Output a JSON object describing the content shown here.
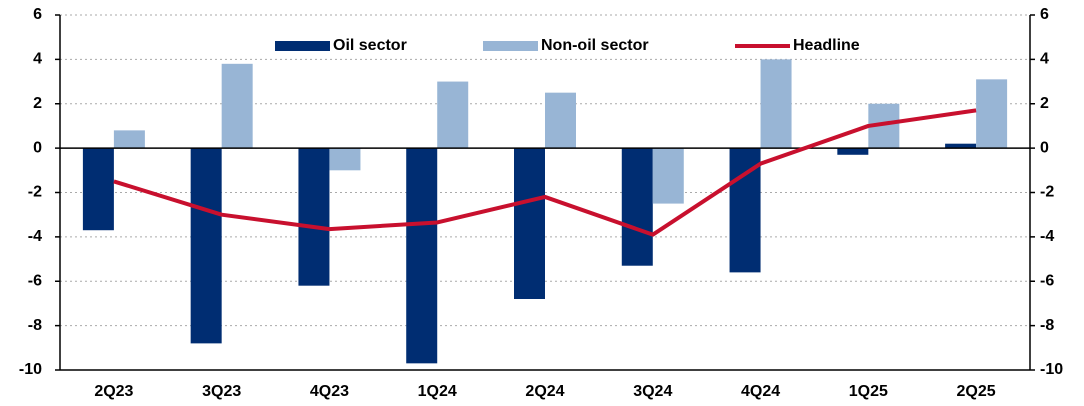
{
  "chart_data": {
    "type": "bar_line",
    "categories": [
      "2Q23",
      "3Q23",
      "4Q23",
      "1Q24",
      "2Q24",
      "3Q24",
      "4Q24",
      "1Q25",
      "2Q25"
    ],
    "series": [
      {
        "name": "Oil sector",
        "color": "#002d72",
        "type": "bar",
        "values": [
          -3.7,
          -8.8,
          -6.2,
          -9.7,
          -6.8,
          -5.3,
          -5.6,
          -0.3,
          0.2
        ]
      },
      {
        "name": "Non-oil sector",
        "color": "#98b5d5",
        "type": "bar",
        "values": [
          0.8,
          3.8,
          -1.0,
          3.0,
          2.5,
          -2.5,
          4.0,
          2.0,
          3.1
        ]
      },
      {
        "name": "Headline",
        "color": "#c8102e",
        "type": "line",
        "values": [
          -1.5,
          -3.0,
          -3.65,
          -3.35,
          -2.2,
          -3.9,
          -0.7,
          1.0,
          1.7
        ]
      }
    ],
    "ylim": [
      -10,
      6
    ],
    "yticks": [
      -10,
      -8,
      -6,
      -4,
      -2,
      0,
      2,
      4,
      6
    ],
    "y2lim": [
      -10,
      6
    ],
    "y2ticks": [
      -10,
      -8,
      -6,
      -4,
      -2,
      0,
      2,
      4,
      6
    ],
    "grid": true,
    "legend": "top"
  }
}
